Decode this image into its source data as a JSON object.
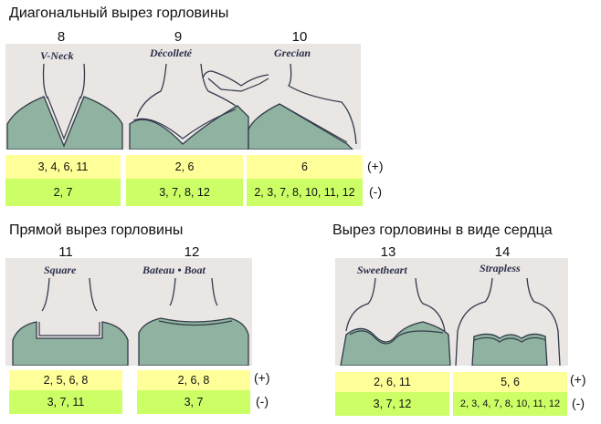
{
  "sections": [
    {
      "heading": "Диагональный вырез горловины"
    },
    {
      "heading": "Прямой вырез горловины"
    },
    {
      "heading": "Вырез горловины в виде сердца"
    }
  ],
  "necklines": [
    {
      "number": "8",
      "label": "V-Neck",
      "plus": "3, 4, 6, 11",
      "minus": "2, 7"
    },
    {
      "number": "9",
      "label": "Décolleté",
      "plus": "2, 6",
      "minus": "3, 7, 8, 12"
    },
    {
      "number": "10",
      "label": "Grecian",
      "plus": "6",
      "minus": "2, 3, 7, 8, 10, 11, 12"
    },
    {
      "number": "11",
      "label": "Square",
      "plus": "2, 5, 6, 8",
      "minus": "3, 7, 11"
    },
    {
      "number": "12",
      "label": "Bateau • Boat",
      "plus": "2, 6, 8",
      "minus": "3, 7"
    },
    {
      "number": "13",
      "label": "Sweetheart",
      "plus": "2, 6, 11",
      "minus": "3, 7, 12"
    },
    {
      "number": "14",
      "label": "Strapless",
      "plus": "5, 6",
      "minus": "2, 3, 4, 7, 8, 10, 11, 12"
    }
  ],
  "signs": {
    "plus": "(+)",
    "minus": "(-)"
  },
  "colors": {
    "plus_bg": "#ffff99",
    "minus_bg": "#ccff66",
    "dress": "#8fb3a0",
    "photo_bg": "#e9e6e4"
  }
}
